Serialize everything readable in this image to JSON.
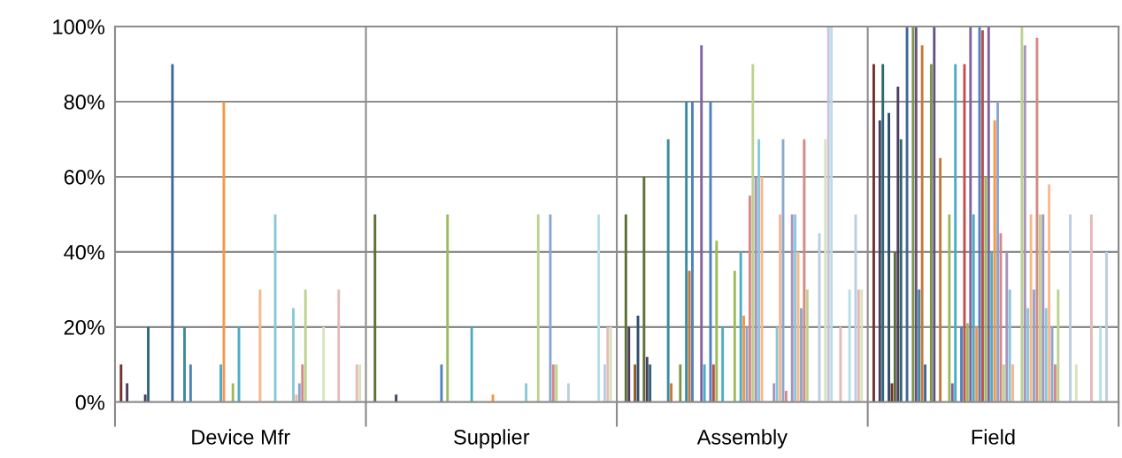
{
  "chart_data": {
    "type": "bar",
    "categories": [
      "Device Mfr",
      "Supplier",
      "Assembly",
      "Field"
    ],
    "ylim": [
      0,
      100
    ],
    "yticks": [
      {
        "value": 0,
        "label": "0%"
      },
      {
        "value": 20,
        "label": "20%"
      },
      {
        "value": 40,
        "label": "40%"
      },
      {
        "value": 60,
        "label": "60%"
      },
      {
        "value": 80,
        "label": "80%"
      },
      {
        "value": 100,
        "label": "100%"
      }
    ],
    "grid": true,
    "series": [
      {
        "color": "#73302e",
        "values": [
          10,
          0,
          0,
          90
        ]
      },
      {
        "color": "#5d7035",
        "values": [
          0,
          50,
          50,
          0
        ]
      },
      {
        "color": "#4d3c61",
        "values": [
          5,
          0,
          20,
          75
        ]
      },
      {
        "color": "#2d6776",
        "values": [
          0,
          0,
          0,
          90
        ]
      },
      {
        "color": "#945a2a",
        "values": [
          0,
          0,
          10,
          0
        ]
      },
      {
        "color": "#2f4d71",
        "values": [
          0,
          0,
          23,
          77
        ]
      },
      {
        "color": "#73302e",
        "values": [
          0,
          0,
          0,
          5
        ]
      },
      {
        "color": "#5d7035",
        "values": [
          0,
          0,
          60,
          40
        ]
      },
      {
        "color": "#4d3c61",
        "values": [
          2,
          2,
          12,
          84
        ]
      },
      {
        "color": "#2d6776",
        "values": [
          20,
          0,
          10,
          70
        ]
      },
      {
        "color": "#945a2a",
        "values": [
          0,
          0,
          0,
          0
        ]
      },
      {
        "color": "#3f6797",
        "values": [
          0,
          0,
          0,
          100
        ]
      },
      {
        "color": "#9a403e",
        "values": [
          0,
          0,
          0,
          0
        ]
      },
      {
        "color": "#7c9647",
        "values": [
          0,
          0,
          0,
          100
        ]
      },
      {
        "color": "#665082",
        "values": [
          0,
          0,
          0,
          100
        ]
      },
      {
        "color": "#3c8a9e",
        "values": [
          0,
          0,
          70,
          30
        ]
      },
      {
        "color": "#c67838",
        "values": [
          0,
          0,
          5,
          95
        ]
      },
      {
        "color": "#3f6797",
        "values": [
          90,
          0,
          0,
          10
        ]
      },
      {
        "color": "#9a403e",
        "values": [
          0,
          0,
          0,
          0
        ]
      },
      {
        "color": "#7c9647",
        "values": [
          0,
          0,
          10,
          90
        ]
      },
      {
        "color": "#665082",
        "values": [
          0,
          0,
          0,
          100
        ]
      },
      {
        "color": "#3c8a9e",
        "values": [
          20,
          0,
          80,
          0
        ]
      },
      {
        "color": "#c67838",
        "values": [
          0,
          0,
          35,
          65
        ]
      },
      {
        "color": "#4f81bd",
        "values": [
          10,
          10,
          80,
          0
        ]
      },
      {
        "color": "#c0504d",
        "values": [
          0,
          0,
          0,
          0
        ]
      },
      {
        "color": "#9bbb59",
        "values": [
          0,
          50,
          0,
          50
        ]
      },
      {
        "color": "#8064a2",
        "values": [
          0,
          0,
          95,
          5
        ]
      },
      {
        "color": "#4bacc6",
        "values": [
          0,
          0,
          10,
          90
        ]
      },
      {
        "color": "#f79646",
        "values": [
          0,
          0,
          0,
          0
        ]
      },
      {
        "color": "#4f81bd",
        "values": [
          0,
          0,
          80,
          20
        ]
      },
      {
        "color": "#c0504d",
        "values": [
          0,
          0,
          10,
          90
        ]
      },
      {
        "color": "#9bbb59",
        "values": [
          0,
          0,
          43,
          21
        ]
      },
      {
        "color": "#8064a2",
        "values": [
          0,
          0,
          0,
          100
        ]
      },
      {
        "color": "#4bacc6",
        "values": [
          10,
          20,
          20,
          50
        ]
      },
      {
        "color": "#f79646",
        "values": [
          80,
          0,
          0,
          20
        ]
      },
      {
        "color": "#4f81bd",
        "values": [
          0,
          0,
          0,
          100
        ]
      },
      {
        "color": "#c0504d",
        "values": [
          0,
          0,
          0,
          99
        ]
      },
      {
        "color": "#9bbb59",
        "values": [
          5,
          0,
          35,
          60
        ]
      },
      {
        "color": "#8064a2",
        "values": [
          0,
          0,
          0,
          100
        ]
      },
      {
        "color": "#4bacc6",
        "values": [
          20,
          0,
          40,
          40
        ]
      },
      {
        "color": "#f79646",
        "values": [
          0,
          2,
          23,
          75
        ]
      },
      {
        "color": "#8aa7d1",
        "values": [
          0,
          0,
          20,
          80
        ]
      },
      {
        "color": "#d58886",
        "values": [
          0,
          0,
          55,
          45
        ]
      },
      {
        "color": "#bcd28f",
        "values": [
          0,
          0,
          90,
          10
        ]
      },
      {
        "color": "#a693bf",
        "values": [
          0,
          0,
          60,
          40
        ]
      },
      {
        "color": "#8ac8d9",
        "values": [
          0,
          0,
          70,
          30
        ]
      },
      {
        "color": "#fab78a",
        "values": [
          30,
          0,
          60,
          10
        ]
      },
      {
        "color": "#8aa7d1",
        "values": [
          0,
          0,
          0,
          0
        ]
      },
      {
        "color": "#d58886",
        "values": [
          0,
          0,
          0,
          0
        ]
      },
      {
        "color": "#bcd28f",
        "values": [
          0,
          0,
          0,
          100
        ]
      },
      {
        "color": "#a693bf",
        "values": [
          0,
          0,
          5,
          95
        ]
      },
      {
        "color": "#8ac8d9",
        "values": [
          50,
          5,
          20,
          25
        ]
      },
      {
        "color": "#fab78a",
        "values": [
          0,
          0,
          50,
          50
        ]
      },
      {
        "color": "#8aa7d1",
        "values": [
          0,
          0,
          70,
          30
        ]
      },
      {
        "color": "#d58886",
        "values": [
          0,
          0,
          3,
          97
        ]
      },
      {
        "color": "#bcd28f",
        "values": [
          0,
          50,
          0,
          50
        ]
      },
      {
        "color": "#a693bf",
        "values": [
          0,
          0,
          50,
          50
        ]
      },
      {
        "color": "#8ac8d9",
        "values": [
          25,
          0,
          50,
          25
        ]
      },
      {
        "color": "#fab78a",
        "values": [
          2,
          0,
          40,
          58
        ]
      },
      {
        "color": "#8aa7d1",
        "values": [
          5,
          50,
          25,
          20
        ]
      },
      {
        "color": "#d58886",
        "values": [
          10,
          10,
          70,
          10
        ]
      },
      {
        "color": "#bcd28f",
        "values": [
          30,
          10,
          30,
          30
        ]
      },
      {
        "color": "#a693bf",
        "values": [
          0,
          0,
          0,
          0
        ]
      },
      {
        "color": "#8ac8d9",
        "values": [
          0,
          0,
          0,
          0
        ]
      },
      {
        "color": "#fab78a",
        "values": [
          0,
          0,
          0,
          0
        ]
      },
      {
        "color": "#b9cde5",
        "values": [
          0,
          5,
          45,
          50
        ]
      },
      {
        "color": "#e6b9b8",
        "values": [
          0,
          0,
          0,
          0
        ]
      },
      {
        "color": "#d7e4bd",
        "values": [
          20,
          0,
          70,
          10
        ]
      },
      {
        "color": "#ccc1da",
        "values": [
          0,
          0,
          100,
          0
        ]
      },
      {
        "color": "#b7dee8",
        "values": [
          0,
          0,
          100,
          0
        ]
      },
      {
        "color": "#fcd5b5",
        "values": [
          0,
          0,
          0,
          0
        ]
      },
      {
        "color": "#b9cde5",
        "values": [
          0,
          0,
          0,
          0
        ]
      },
      {
        "color": "#e6b9b8",
        "values": [
          30,
          0,
          20,
          50
        ]
      },
      {
        "color": "#d7e4bd",
        "values": [
          0,
          0,
          0,
          0
        ]
      },
      {
        "color": "#ccc1da",
        "values": [
          0,
          0,
          0,
          0
        ]
      },
      {
        "color": "#b7dee8",
        "values": [
          0,
          50,
          30,
          20
        ]
      },
      {
        "color": "#fcd5b5",
        "values": [
          0,
          0,
          0,
          0
        ]
      },
      {
        "color": "#b9cde5",
        "values": [
          0,
          10,
          50,
          40
        ]
      },
      {
        "color": "#e6b9b8",
        "values": [
          10,
          20,
          30,
          0
        ]
      },
      {
        "color": "#d7e4bd",
        "values": [
          10,
          20,
          30,
          0
        ]
      }
    ]
  }
}
